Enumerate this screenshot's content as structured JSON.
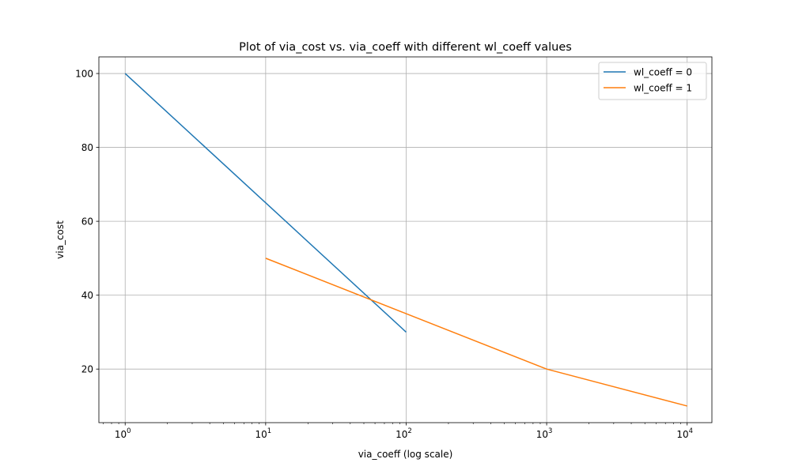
{
  "chart_data": {
    "type": "line",
    "title": "Plot of via_cost vs. via_coeff with different wl_coeff values",
    "xlabel": "via_coeff (log scale)",
    "ylabel": "via_cost",
    "x_scale": "log",
    "xlim": [
      0.65,
      15000
    ],
    "ylim": [
      5.5,
      104.5
    ],
    "x_ticks": [
      {
        "value": 1,
        "base": "10",
        "exp": "0"
      },
      {
        "value": 10,
        "base": "10",
        "exp": "1"
      },
      {
        "value": 100,
        "base": "10",
        "exp": "2"
      },
      {
        "value": 1000,
        "base": "10",
        "exp": "3"
      },
      {
        "value": 10000,
        "base": "10",
        "exp": "4"
      }
    ],
    "y_ticks": [
      20,
      40,
      60,
      80,
      100
    ],
    "y_tick_labels": [
      "20",
      "40",
      "60",
      "80",
      "100"
    ],
    "grid": true,
    "legend_position": "top-right",
    "series": [
      {
        "name": "wl_coeff = 0",
        "color": "#1f77b4",
        "x": [
          1,
          10,
          100
        ],
        "y": [
          100,
          65,
          30
        ]
      },
      {
        "name": "wl_coeff = 1",
        "color": "#ff7f0e",
        "x": [
          10,
          100,
          1000,
          10000
        ],
        "y": [
          50,
          35,
          20,
          10
        ]
      }
    ]
  }
}
